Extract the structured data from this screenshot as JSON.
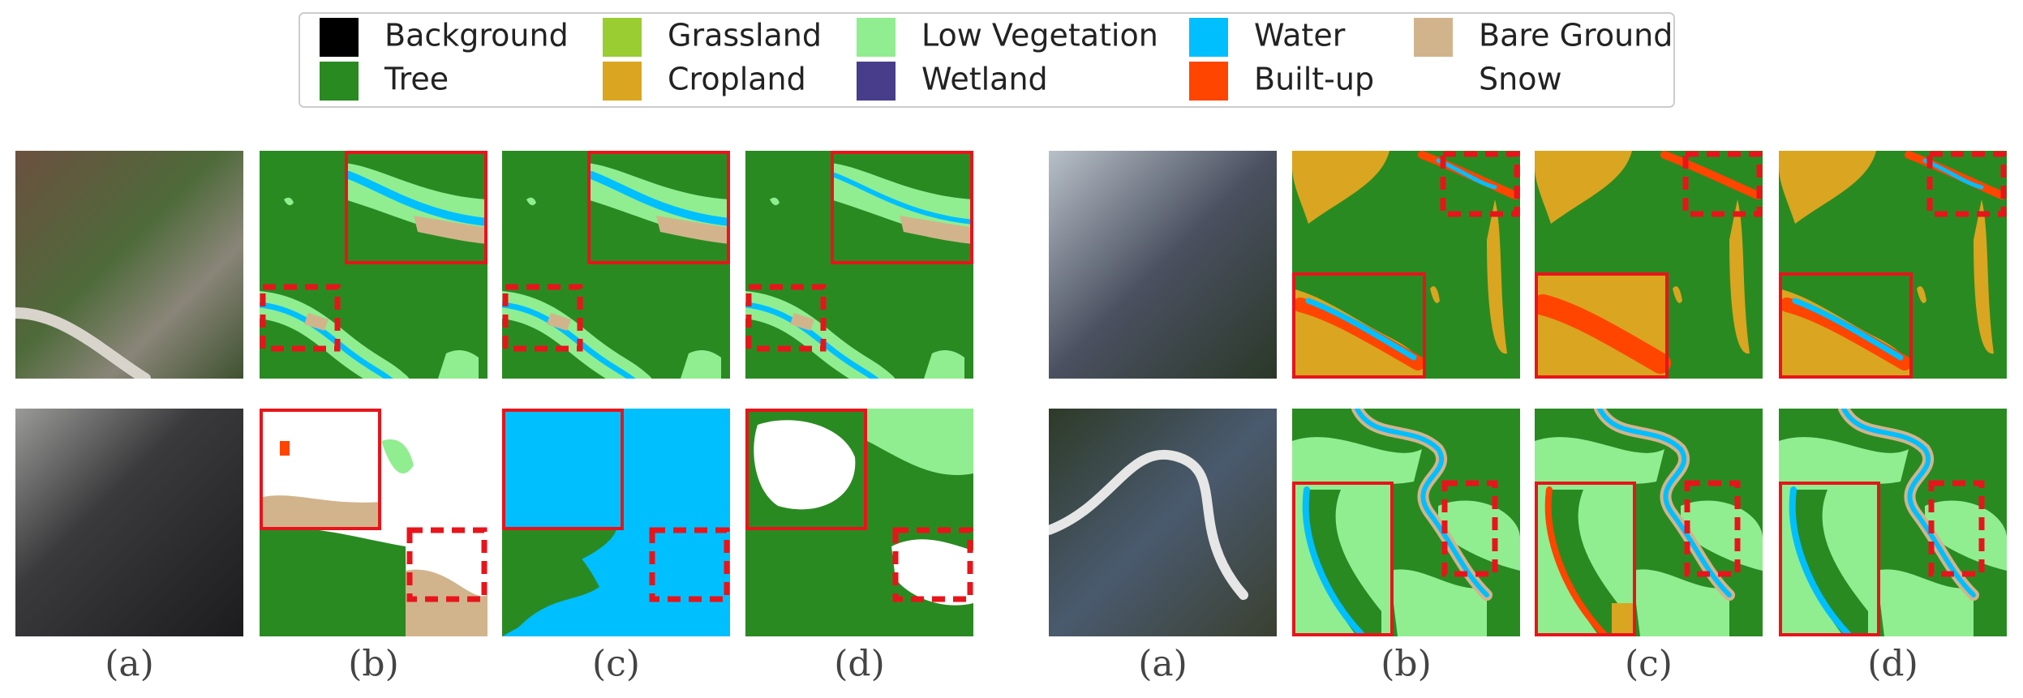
{
  "legend": {
    "items": [
      {
        "name": "Background",
        "color": "#000000"
      },
      {
        "name": "Tree",
        "color": "#2a8a22"
      },
      {
        "name": "Grassland",
        "color": "#9acd32"
      },
      {
        "name": "Cropland",
        "color": "#daa520"
      },
      {
        "name": "Low Vegetation",
        "color": "#90ee90"
      },
      {
        "name": "Wetland",
        "color": "#483d8b"
      },
      {
        "name": "Water",
        "color": "#00bfff"
      },
      {
        "name": "Built-up",
        "color": "#ff4500"
      },
      {
        "name": "Bare Ground",
        "color": "#d2b48c"
      },
      {
        "name": "Snow",
        "color": "#ffffff"
      }
    ]
  },
  "panels": {
    "groups": [
      {
        "labels": [
          "(a)",
          "(b)",
          "(c)",
          "(d)"
        ]
      },
      {
        "labels": [
          "(a)",
          "(b)",
          "(c)",
          "(d)"
        ]
      }
    ]
  }
}
